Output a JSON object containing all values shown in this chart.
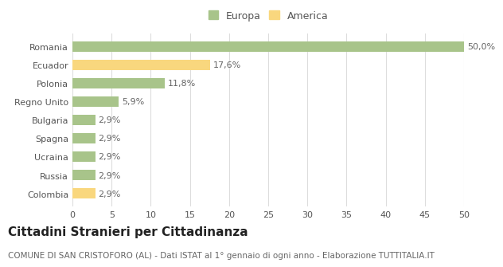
{
  "categories": [
    "Colombia",
    "Russia",
    "Ucraina",
    "Spagna",
    "Bulgaria",
    "Regno Unito",
    "Polonia",
    "Ecuador",
    "Romania"
  ],
  "values": [
    2.9,
    2.9,
    2.9,
    2.9,
    2.9,
    5.9,
    11.8,
    17.6,
    50.0
  ],
  "colors": [
    "#f9d77e",
    "#a8c48a",
    "#a8c48a",
    "#a8c48a",
    "#a8c48a",
    "#a8c48a",
    "#a8c48a",
    "#f9d77e",
    "#a8c48a"
  ],
  "labels": [
    "2,9%",
    "2,9%",
    "2,9%",
    "2,9%",
    "2,9%",
    "5,9%",
    "11,8%",
    "17,6%",
    "50,0%"
  ],
  "xlim": [
    0,
    50
  ],
  "xticks": [
    0,
    5,
    10,
    15,
    20,
    25,
    30,
    35,
    40,
    45,
    50
  ],
  "legend_europa_color": "#a8c48a",
  "legend_america_color": "#f9d77e",
  "title": "Cittadini Stranieri per Cittadinanza",
  "subtitle": "COMUNE DI SAN CRISTOFORO (AL) - Dati ISTAT al 1° gennaio di ogni anno - Elaborazione TUTTITALIA.IT",
  "bg_color": "#ffffff",
  "grid_color": "#dddddd",
  "bar_height": 0.55,
  "title_fontsize": 11,
  "subtitle_fontsize": 7.5,
  "label_fontsize": 8,
  "tick_fontsize": 8
}
